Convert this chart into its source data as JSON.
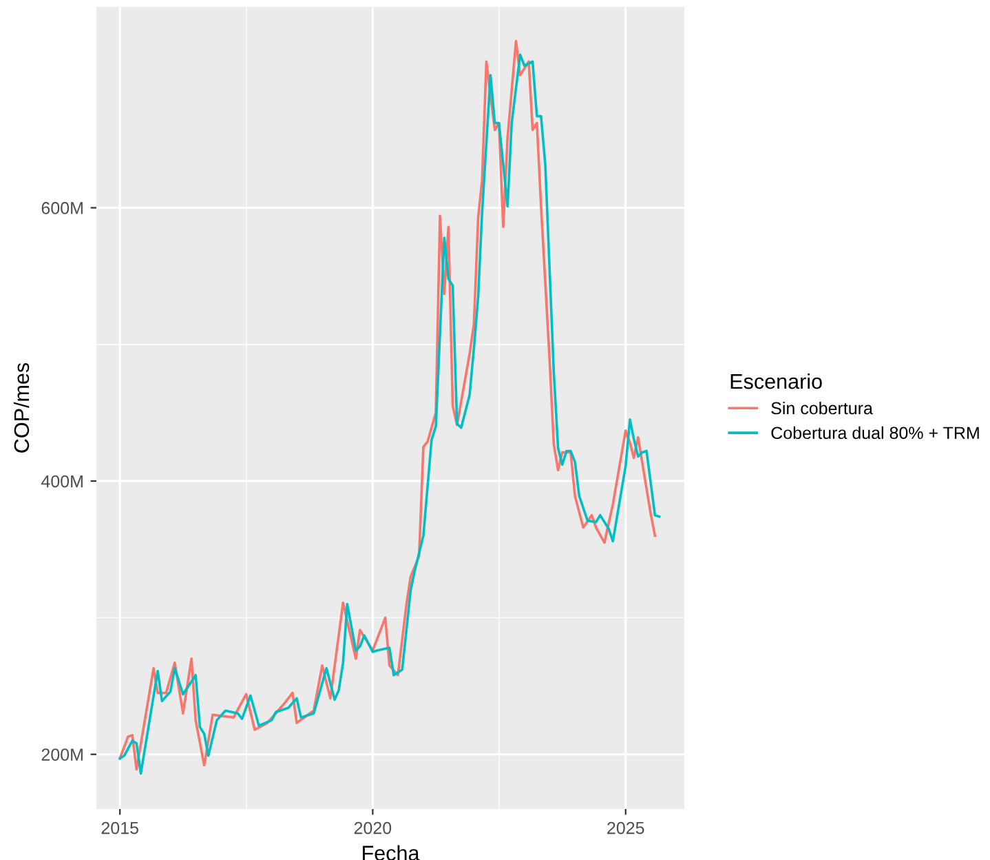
{
  "chart_data": {
    "type": "line",
    "xlabel": "Fecha",
    "ylabel": "COP/mes",
    "legend_title": "Escenario",
    "legend": "right",
    "grid": true,
    "xlim": [
      "2014-07-15",
      "2026-03-01"
    ],
    "xticks": [
      {
        "value": "2015-01-01",
        "label": "2015"
      },
      {
        "value": "2020-01-01",
        "label": "2020"
      },
      {
        "value": "2025-01-01",
        "label": "2025"
      }
    ],
    "ylim": [
      160,
      747
    ],
    "yticks": [
      {
        "value": 200,
        "label": "200M"
      },
      {
        "value": 400,
        "label": "400M"
      },
      {
        "value": 600,
        "label": "600M"
      }
    ],
    "series": [
      {
        "name": "Sin cobertura",
        "color": "#f8766d",
        "x": [
          "2015-01",
          "2015-03",
          "2015-04",
          "2015-05",
          "2015-09",
          "2015-10",
          "2015-12",
          "2016-02",
          "2016-04",
          "2016-06",
          "2016-07",
          "2016-09",
          "2016-11",
          "2017-04",
          "2017-07",
          "2017-09",
          "2017-12",
          "2018-04",
          "2018-06",
          "2018-07",
          "2018-11",
          "2019-01",
          "2019-03",
          "2019-06",
          "2019-09",
          "2019-10",
          "2020-01",
          "2020-04",
          "2020-05",
          "2020-07",
          "2020-09",
          "2020-10",
          "2020-12",
          "2021-01",
          "2021-02",
          "2021-04",
          "2021-05",
          "2021-06",
          "2021-07",
          "2021-08",
          "2021-09",
          "2021-12",
          "2022-01",
          "2022-02",
          "2022-03",
          "2022-04",
          "2022-06",
          "2022-07",
          "2022-08",
          "2022-09",
          "2022-11",
          "2022-12",
          "2023-02",
          "2023-03",
          "2023-04",
          "2023-05",
          "2023-07",
          "2023-08",
          "2023-09",
          "2023-10",
          "2023-12",
          "2024-01",
          "2024-03",
          "2024-05",
          "2024-06",
          "2024-08",
          "2024-10",
          "2025-01",
          "2025-02",
          "2025-03",
          "2025-04",
          "2025-07",
          "2025-08"
        ],
        "values": [
          197,
          213,
          214,
          189,
          263,
          245,
          245,
          267,
          230,
          270,
          225,
          192,
          229,
          227,
          244,
          218,
          223,
          237,
          245,
          223,
          232,
          265,
          241,
          311,
          270,
          291,
          276,
          300,
          265,
          258,
          310,
          330,
          345,
          425,
          429,
          450,
          594,
          537,
          586,
          455,
          441,
          493,
          515,
          593,
          620,
          707,
          657,
          662,
          586,
          651,
          722,
          697,
          707,
          657,
          662,
          601,
          490,
          427,
          408,
          421,
          421,
          389,
          366,
          375,
          366,
          355,
          383,
          437,
          428,
          417,
          432,
          376,
          360
        ]
      },
      {
        "name": "Cobertura dual 80% + TRM",
        "color": "#00bfc4",
        "x": [
          "2015-01",
          "2015-02",
          "2015-04",
          "2015-05",
          "2015-06",
          "2015-10",
          "2015-11",
          "2016-01",
          "2016-02",
          "2016-04",
          "2016-07",
          "2016-08",
          "2016-09",
          "2016-10",
          "2016-12",
          "2017-02",
          "2017-05",
          "2017-06",
          "2017-08",
          "2017-10",
          "2018-01",
          "2018-02",
          "2018-05",
          "2018-07",
          "2018-08",
          "2018-11",
          "2019-02",
          "2019-04",
          "2019-05",
          "2019-06",
          "2019-07",
          "2019-09",
          "2019-10",
          "2019-11",
          "2020-01",
          "2020-02",
          "2020-05",
          "2020-06",
          "2020-08",
          "2020-10",
          "2020-11",
          "2021-01",
          "2021-03",
          "2021-04",
          "2021-06",
          "2021-07",
          "2021-08",
          "2021-09",
          "2021-10",
          "2021-12",
          "2022-01",
          "2022-02",
          "2022-03",
          "2022-05",
          "2022-06",
          "2022-07",
          "2022-09",
          "2022-10",
          "2022-12",
          "2023-01",
          "2023-03",
          "2023-04",
          "2023-05",
          "2023-06",
          "2023-08",
          "2023-09",
          "2023-10",
          "2023-11",
          "2023-12",
          "2024-01",
          "2024-02",
          "2024-04",
          "2024-06",
          "2024-07",
          "2024-09",
          "2024-10",
          "2025-01",
          "2025-02",
          "2025-03",
          "2025-04",
          "2025-05",
          "2025-06",
          "2025-08",
          "2025-09"
        ],
        "values": [
          197,
          199,
          210,
          208,
          186,
          261,
          239,
          246,
          263,
          244,
          258,
          220,
          215,
          199,
          225,
          232,
          230,
          226,
          243,
          221,
          225,
          231,
          234,
          241,
          227,
          230,
          263,
          240,
          247,
          267,
          310,
          276,
          279,
          287,
          275,
          276,
          278,
          258,
          262,
          320,
          335,
          360,
          430,
          440,
          578,
          548,
          543,
          442,
          439,
          463,
          497,
          535,
          596,
          697,
          662,
          662,
          601,
          662,
          712,
          704,
          707,
          667,
          667,
          631,
          480,
          424,
          412,
          422,
          422,
          414,
          389,
          371,
          370,
          375,
          365,
          356,
          411,
          445,
          431,
          418,
          421,
          422,
          375,
          374
        ]
      }
    ]
  }
}
